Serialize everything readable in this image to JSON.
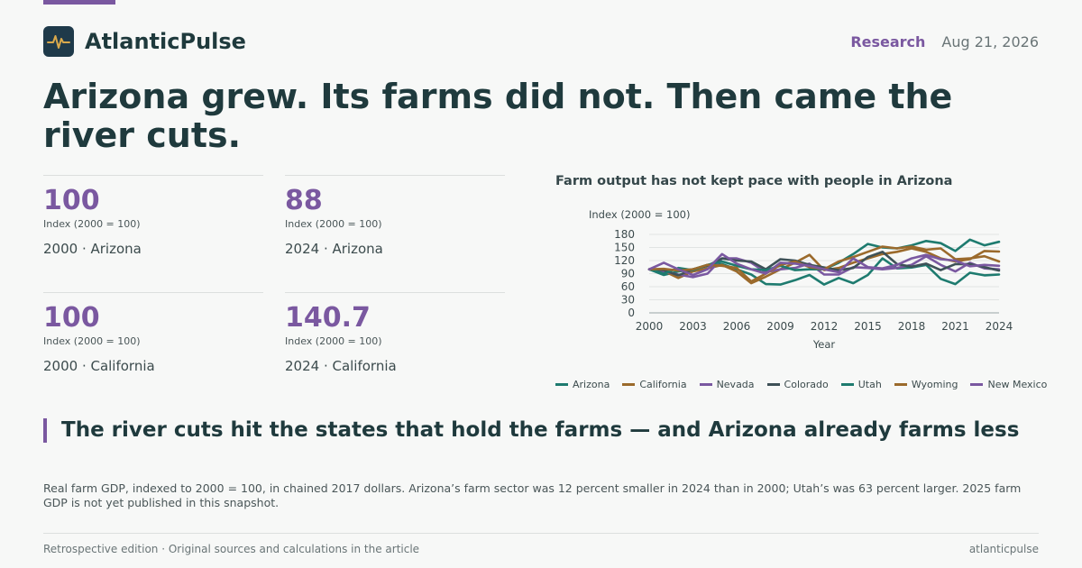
{
  "brand": {
    "name": "AtlanticPulse",
    "logo_icon": "pulse-icon"
  },
  "header": {
    "section": "Research",
    "date": "Aug 21, 2026"
  },
  "headline": "Arizona grew. Its farms did not. Then came the river cuts.",
  "stats": [
    {
      "value": "100",
      "unit": "Index (2000 = 100)",
      "label": "2000 · Arizona"
    },
    {
      "value": "88",
      "unit": "Index (2000 = 100)",
      "label": "2024 · Arizona"
    },
    {
      "value": "100",
      "unit": "Index (2000 = 100)",
      "label": "2000 · California"
    },
    {
      "value": "140.7",
      "unit": "Index (2000 = 100)",
      "label": "2024 · California"
    }
  ],
  "chart_data": {
    "type": "line",
    "title": "Farm output has not kept pace with people in Arizona",
    "ylabel": "Index (2000 = 100)",
    "xlabel": "Year",
    "ylim": [
      0,
      180
    ],
    "yticks": [
      0,
      30,
      60,
      90,
      120,
      150,
      180
    ],
    "xlim": [
      2000,
      2024
    ],
    "xticks": [
      2000,
      2003,
      2006,
      2009,
      2012,
      2015,
      2018,
      2021,
      2024
    ],
    "grid": true,
    "legend_position": "bottom",
    "x": [
      2000,
      2001,
      2002,
      2003,
      2004,
      2005,
      2006,
      2007,
      2008,
      2009,
      2010,
      2011,
      2012,
      2013,
      2014,
      2015,
      2016,
      2017,
      2018,
      2019,
      2020,
      2021,
      2022,
      2023,
      2024
    ],
    "series": [
      {
        "name": "Arizona",
        "color": "#1e7b6f",
        "values": [
          100,
          87,
          95,
          100,
          110,
          112,
          100,
          88,
          66,
          65,
          75,
          87,
          65,
          80,
          68,
          87,
          125,
          102,
          104,
          110,
          78,
          66,
          92,
          86,
          88
        ]
      },
      {
        "name": "California",
        "color": "#9b6a2c",
        "values": [
          100,
          96,
          80,
          95,
          102,
          110,
          95,
          68,
          83,
          100,
          115,
          133,
          98,
          103,
          115,
          125,
          135,
          140,
          148,
          140,
          125,
          118,
          123,
          142,
          140.7
        ]
      },
      {
        "name": "Nevada",
        "color": "#7a58a0",
        "values": [
          100,
          95,
          88,
          82,
          90,
          125,
          125,
          115,
          93,
          100,
          103,
          113,
          88,
          88,
          105,
          103,
          100,
          103,
          110,
          130,
          110,
          95,
          115,
          102,
          100
        ]
      },
      {
        "name": "Colorado",
        "color": "#3e5157",
        "values": [
          100,
          98,
          86,
          100,
          108,
          125,
          120,
          118,
          100,
          123,
          120,
          110,
          104,
          98,
          103,
          128,
          140,
          112,
          106,
          113,
          98,
          112,
          112,
          105,
          97
        ]
      },
      {
        "name": "Utah",
        "color": "#1e7b6f",
        "values": [
          100,
          90,
          103,
          98,
          110,
          118,
          108,
          100,
          98,
          108,
          98,
          100,
          100,
          115,
          135,
          158,
          150,
          148,
          155,
          165,
          160,
          142,
          168,
          155,
          163
        ]
      },
      {
        "name": "Wyoming",
        "color": "#9b6a2c",
        "values": [
          100,
          101,
          97,
          100,
          110,
          108,
          103,
          72,
          90,
          110,
          118,
          105,
          100,
          118,
          128,
          140,
          152,
          148,
          152,
          145,
          148,
          123,
          125,
          130,
          118
        ]
      },
      {
        "name": "New Mexico",
        "color": "#7a58a0",
        "values": [
          100,
          115,
          100,
          87,
          100,
          135,
          113,
          100,
          90,
          115,
          113,
          108,
          100,
          93,
          125,
          105,
          102,
          110,
          125,
          133,
          123,
          120,
          107,
          110,
          108
        ]
      }
    ]
  },
  "takeaway": "The river cuts hit the states that hold the farms — and Arizona already farms less",
  "note": "Real farm GDP, indexed to 2000 = 100, in chained 2017 dollars. Arizona’s farm sector was 12 percent smaller in 2024 than in 2000; Utah’s was 63 percent larger. 2025 farm GDP is not yet published in this snapshot.",
  "footer": {
    "left": "Retrospective edition · Original sources and calculations in the article",
    "right": "atlanticpulse"
  }
}
